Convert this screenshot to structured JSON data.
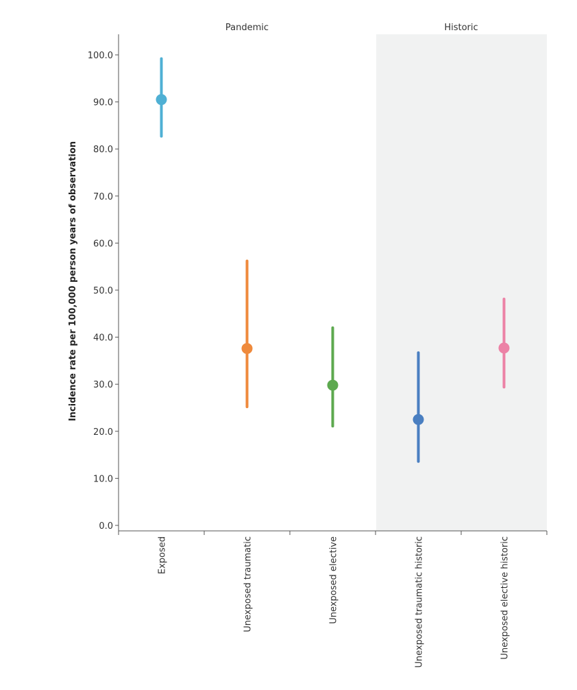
{
  "chart_data": {
    "type": "scatter",
    "ylabel": "Incidence rate per 100,000 person years of observation",
    "ylim": [
      0,
      100
    ],
    "yticks": [
      "0.0",
      "10.0",
      "20.0",
      "30.0",
      "40.0",
      "50.0",
      "60.0",
      "70.0",
      "80.0",
      "90.0",
      "100.0"
    ],
    "panels": [
      {
        "label": "Pandemic",
        "shaded": false,
        "start": 0,
        "end": 3
      },
      {
        "label": "Historic",
        "shaded": true,
        "start": 3,
        "end": 5
      }
    ],
    "categories": [
      "Exposed",
      "Unexposed traumatic",
      "Unexposed elective",
      "Unexposed traumatic historic",
      "Unexposed  elective historic"
    ],
    "points": [
      {
        "category": "Exposed",
        "value": 90.5,
        "lower": 82.7,
        "upper": 99.2,
        "color": "#4fb0d4"
      },
      {
        "category": "Unexposed traumatic",
        "value": 37.6,
        "lower": 25.2,
        "upper": 56.2,
        "color": "#ef8a3c"
      },
      {
        "category": "Unexposed elective",
        "value": 29.8,
        "lower": 21.1,
        "upper": 42.0,
        "color": "#5da94f"
      },
      {
        "category": "Unexposed traumatic historic",
        "value": 22.5,
        "lower": 13.6,
        "upper": 36.7,
        "color": "#4a7fc1"
      },
      {
        "category": "Unexposed  elective historic",
        "value": 37.7,
        "lower": 29.4,
        "upper": 48.1,
        "color": "#ec82a6"
      }
    ],
    "panel_background": "#f1f2f2",
    "grid": false
  }
}
